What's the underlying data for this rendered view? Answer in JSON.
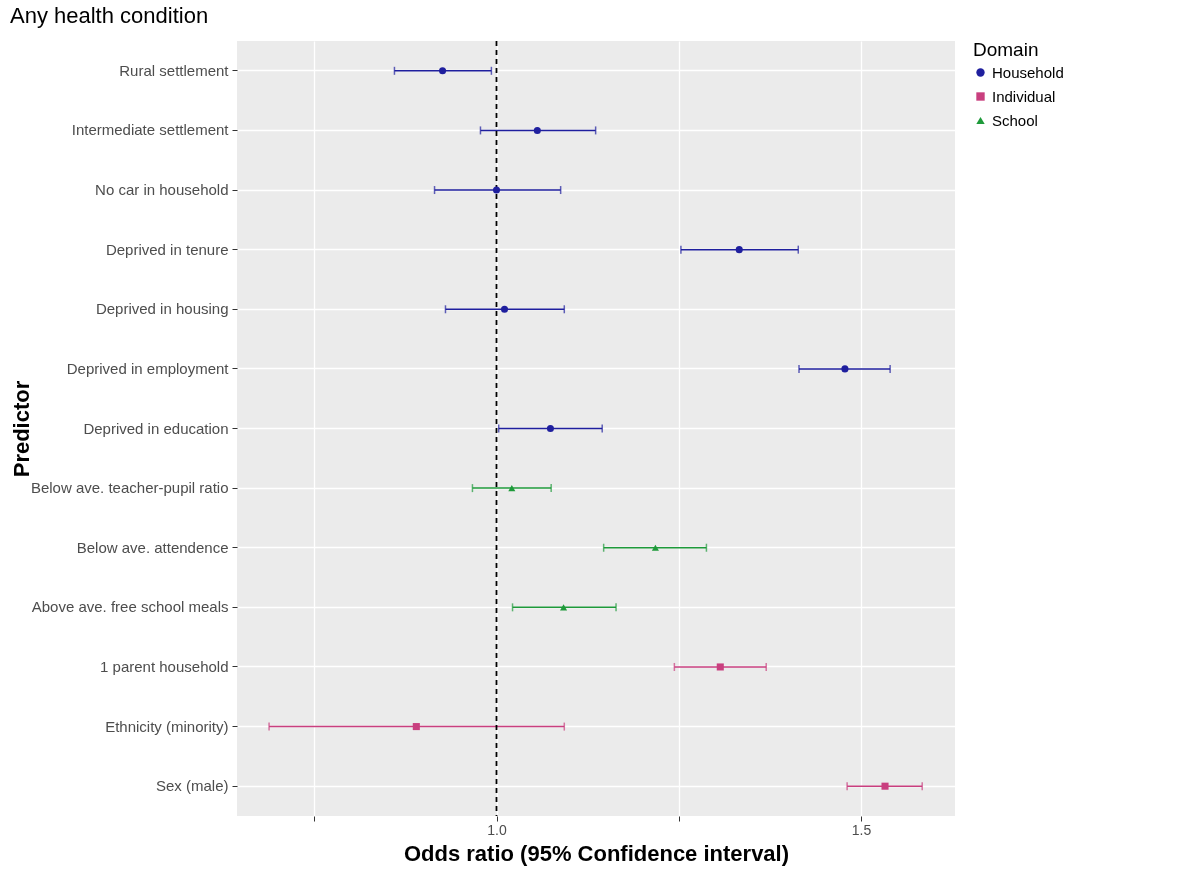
{
  "chart_data": {
    "type": "scatter",
    "orientation": "horizontal",
    "title": "Any health condition",
    "xlabel": "Odds ratio (95% Confidence interval)",
    "ylabel": "Predictor",
    "legend_title": "Domain",
    "legend": "right",
    "grid": true,
    "categories": [
      "Rural settlement",
      "Intermediate settlement",
      "No car in household",
      "Deprived in tenure",
      "Deprived in housing",
      "Deprived in employment",
      "Deprived in education",
      "Below ave. teacher-pupil ratio",
      "Below ave. attendence",
      "Above ave. free school meals",
      "1 parent household",
      "Ethnicity (minority)",
      "Sex (male)"
    ],
    "series": [
      {
        "name": "Household",
        "color": "#1f1f9e",
        "marker": "circle",
        "values": [
          0.926,
          1.056,
          1.0,
          1.333,
          1.011,
          1.478,
          1.074,
          null,
          null,
          null,
          null,
          null,
          null
        ],
        "errors": [
          [
            0.86,
            0.993
          ],
          [
            0.978,
            1.136
          ],
          [
            0.915,
            1.088
          ],
          [
            1.253,
            1.414
          ],
          [
            0.93,
            1.093
          ],
          [
            1.415,
            1.54
          ],
          [
            1.003,
            1.145
          ],
          null,
          null,
          null,
          null,
          null,
          null
        ]
      },
      {
        "name": "Individual",
        "color": "#c93f7f",
        "marker": "square",
        "values": [
          null,
          null,
          null,
          null,
          null,
          null,
          null,
          null,
          null,
          null,
          1.307,
          0.89,
          1.533
        ],
        "errors": [
          null,
          null,
          null,
          null,
          null,
          null,
          null,
          null,
          null,
          null,
          [
            1.244,
            1.37
          ],
          [
            0.688,
            1.093
          ],
          [
            1.481,
            1.584
          ]
        ]
      },
      {
        "name": "School",
        "color": "#1e9a3a",
        "marker": "triangle",
        "values": [
          null,
          null,
          null,
          null,
          null,
          null,
          null,
          1.021,
          1.218,
          1.092,
          null,
          null,
          null
        ],
        "errors": [
          null,
          null,
          null,
          null,
          null,
          null,
          null,
          [
            0.967,
            1.075
          ],
          [
            1.147,
            1.288
          ],
          [
            1.022,
            1.164
          ],
          null,
          null,
          null
        ]
      }
    ],
    "xlim": [
      0.644,
      1.629
    ],
    "xticks": [
      {
        "value": 0.75,
        "label": null
      },
      {
        "value": 1,
        "label": "1.0"
      },
      {
        "value": 1.25,
        "label": null
      },
      {
        "value": 1.5,
        "label": "1.5"
      }
    ],
    "ref_lines": [
      {
        "axis": "x",
        "value": 1,
        "color": "#000000",
        "line_style": "dashed"
      }
    ]
  }
}
